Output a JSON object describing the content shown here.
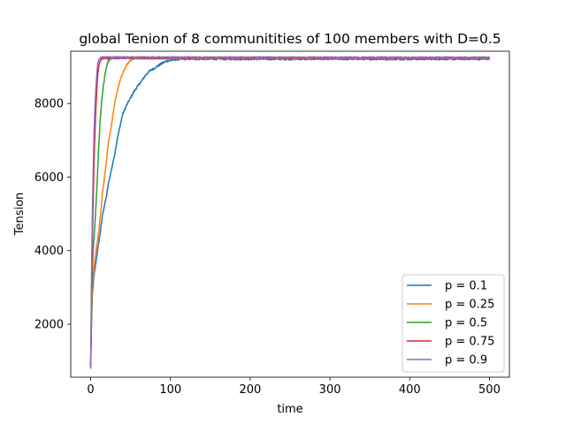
{
  "chart_data": {
    "type": "line",
    "title": "global Tenion of 8 communitities of 100 members with  D=0.5",
    "xlabel": "time",
    "ylabel": "Tension",
    "xlim": [
      -25,
      525
    ],
    "ylim": [
      560,
      9420
    ],
    "xticks": [
      0,
      100,
      200,
      300,
      400,
      500
    ],
    "yticks": [
      2000,
      4000,
      6000,
      8000
    ],
    "grid": false,
    "legend_position": "lower right",
    "series": [
      {
        "name": "p = 0.1",
        "color": "#1f77b4",
        "x": [
          0,
          1,
          2,
          4,
          6,
          8,
          10,
          12,
          15,
          18,
          20,
          22,
          25,
          28,
          30,
          33,
          35,
          38,
          40,
          45,
          50,
          55,
          60,
          65,
          70,
          75,
          80,
          85,
          90,
          95,
          100,
          105,
          110,
          115
        ],
        "y": [
          850,
          2000,
          2800,
          3300,
          3600,
          3900,
          4200,
          4500,
          5000,
          5300,
          5500,
          5800,
          6100,
          6400,
          6600,
          7000,
          7200,
          7500,
          7700,
          7950,
          8150,
          8350,
          8500,
          8650,
          8800,
          8900,
          8960,
          9030,
          9100,
          9150,
          9170,
          9190,
          9200,
          9210
        ]
      },
      {
        "name": "p = 0.25",
        "color": "#ff7f0e",
        "x": [
          0,
          1,
          2,
          4,
          6,
          8,
          10,
          12,
          15,
          18,
          20,
          22,
          25,
          28,
          30,
          33,
          35,
          40,
          45,
          50,
          55,
          60
        ],
        "y": [
          850,
          2200,
          3000,
          3500,
          3900,
          4200,
          4500,
          4900,
          5600,
          6100,
          6500,
          6900,
          7300,
          7700,
          8000,
          8300,
          8500,
          8800,
          9050,
          9170,
          9220,
          9230
        ]
      },
      {
        "name": "p = 0.5",
        "color": "#2ca02c",
        "x": [
          0,
          1,
          2,
          3,
          4,
          5,
          6,
          8,
          10,
          12,
          14,
          16,
          18,
          20,
          22,
          25,
          30
        ],
        "y": [
          850,
          2400,
          3400,
          4000,
          4300,
          4600,
          5000,
          5800,
          6800,
          7600,
          8100,
          8500,
          8800,
          9000,
          9150,
          9220,
          9240
        ]
      },
      {
        "name": "p = 0.75",
        "color": "#d62728",
        "x": [
          0,
          1,
          2,
          3,
          4,
          5,
          6,
          7,
          8,
          9,
          10,
          12,
          14,
          16,
          20,
          500
        ],
        "y": [
          850,
          2800,
          4200,
          5200,
          6200,
          7000,
          7600,
          8100,
          8500,
          8800,
          9000,
          9150,
          9220,
          9240,
          9240,
          9230
        ]
      },
      {
        "name": "p = 0.9",
        "color": "#9467bd",
        "x": [
          0,
          1,
          2,
          3,
          4,
          5,
          6,
          7,
          8,
          9,
          10,
          11,
          12,
          14,
          16,
          500
        ],
        "y": [
          780,
          3200,
          4800,
          6000,
          7000,
          7700,
          8200,
          8600,
          8900,
          9100,
          9180,
          9220,
          9240,
          9250,
          9250,
          9240
        ]
      }
    ]
  }
}
